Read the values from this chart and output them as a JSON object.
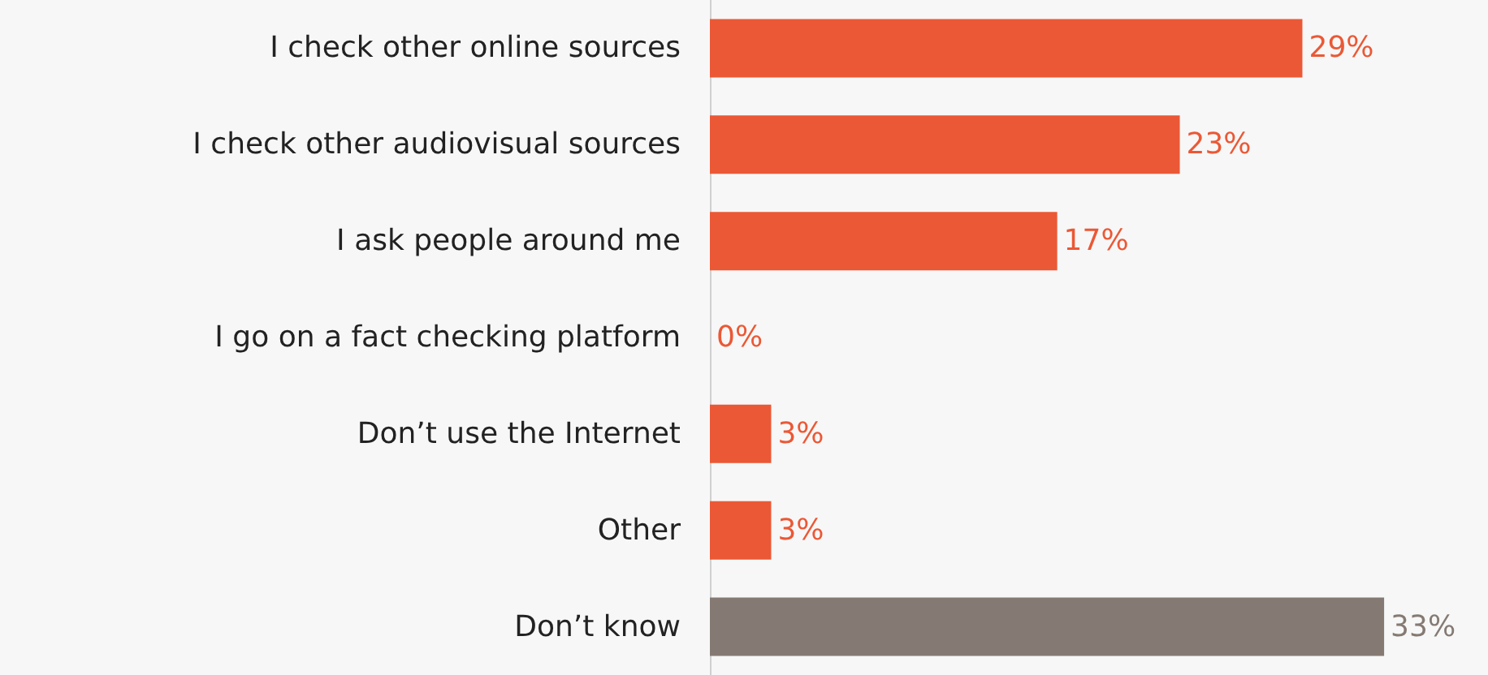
{
  "chart_data": {
    "type": "bar",
    "orientation": "horizontal",
    "categories": [
      "I check other online sources",
      "I check other audiovisual sources",
      "I ask people around me",
      "I go on a fact checking platform",
      "Don’t use the Internet",
      "Other",
      "Don’t know"
    ],
    "values": [
      29,
      23,
      17,
      0,
      3,
      3,
      33
    ],
    "value_labels": [
      "29%",
      "23%",
      "17%",
      "0%",
      "3%",
      "3%",
      "33%"
    ],
    "colors": [
      "#eb5835",
      "#eb5835",
      "#eb5835",
      "#eb5835",
      "#eb5835",
      "#eb5835",
      "#857a73"
    ]
  }
}
